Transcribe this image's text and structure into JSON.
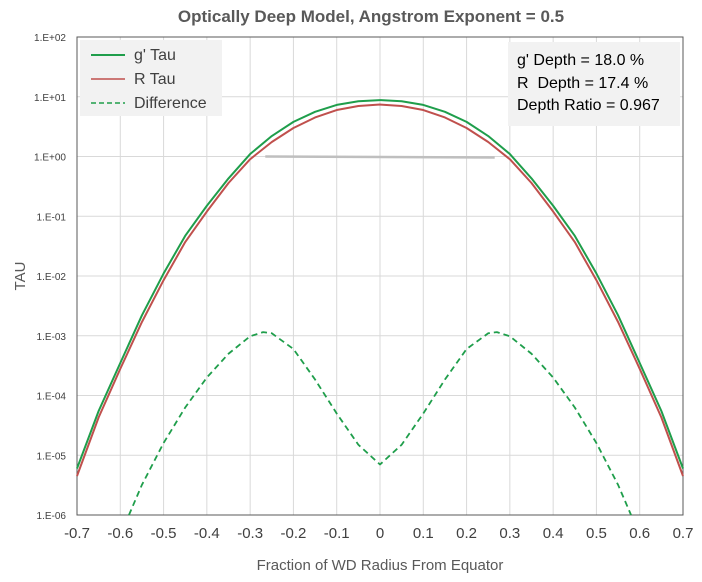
{
  "chart_data": {
    "type": "line",
    "title": "Optically Deep Model, Angstrom Exponent = 0.5",
    "xlabel": "Fraction of WD Radius From Equator",
    "ylabel": "TAU",
    "xlim": [
      -0.7,
      0.7
    ],
    "ylim": [
      1e-06,
      100
    ],
    "y_scale": "log",
    "grid": true,
    "legend_position": "top-left",
    "x_ticks": [
      "-0.7",
      "-0.6",
      "-0.5",
      "-0.4",
      "-0.3",
      "-0.2",
      "-0.1",
      "0",
      "0.1",
      "0.2",
      "0.3",
      "0.4",
      "0.5",
      "0.6",
      "0.7"
    ],
    "y_ticks": [
      "1.E-06",
      "1.E-05",
      "1.E-04",
      "1.E-03",
      "1.E-02",
      "1.E-01",
      "1.E+00",
      "1.E+01",
      "1.E+02"
    ],
    "series": [
      {
        "name": "g' Tau",
        "color": "#1f9e4b",
        "style": "solid",
        "x": [
          -0.7,
          -0.65,
          -0.6,
          -0.55,
          -0.5,
          -0.45,
          -0.4,
          -0.35,
          -0.3,
          -0.25,
          -0.2,
          -0.15,
          -0.1,
          -0.05,
          0,
          0.05,
          0.1,
          0.15,
          0.2,
          0.25,
          0.3,
          0.35,
          0.4,
          0.45,
          0.5,
          0.55,
          0.6,
          0.65,
          0.7
        ],
        "y": [
          6e-06,
          5.5e-05,
          0.00035,
          0.0022,
          0.011,
          0.047,
          0.15,
          0.43,
          1.1,
          2.2,
          3.8,
          5.6,
          7.3,
          8.4,
          8.8,
          8.4,
          7.3,
          5.6,
          3.8,
          2.2,
          1.1,
          0.43,
          0.15,
          0.047,
          0.011,
          0.0022,
          0.00035,
          5.5e-05,
          6e-06
        ]
      },
      {
        "name": "R Tau",
        "color": "#c0504d",
        "style": "solid",
        "x": [
          -0.7,
          -0.65,
          -0.6,
          -0.55,
          -0.5,
          -0.45,
          -0.4,
          -0.35,
          -0.3,
          -0.25,
          -0.2,
          -0.15,
          -0.1,
          -0.05,
          0,
          0.05,
          0.1,
          0.15,
          0.2,
          0.25,
          0.3,
          0.35,
          0.4,
          0.45,
          0.5,
          0.55,
          0.6,
          0.65,
          0.7
        ],
        "y": [
          4.5e-06,
          4.3e-05,
          0.00028,
          0.0017,
          0.0085,
          0.037,
          0.12,
          0.36,
          0.9,
          1.75,
          3.0,
          4.5,
          6.0,
          7.0,
          7.4,
          7.0,
          6.0,
          4.5,
          3.0,
          1.75,
          0.9,
          0.36,
          0.12,
          0.037,
          0.0085,
          0.0017,
          0.00028,
          4.3e-05,
          4.5e-06
        ]
      },
      {
        "name": "Difference",
        "color": "#1f9e4b",
        "style": "dashed",
        "x": [
          -0.58,
          -0.55,
          -0.5,
          -0.45,
          -0.4,
          -0.35,
          -0.3,
          -0.27,
          -0.25,
          -0.2,
          -0.15,
          -0.1,
          -0.05,
          0,
          0.05,
          0.1,
          0.15,
          0.2,
          0.25,
          0.27,
          0.3,
          0.35,
          0.4,
          0.45,
          0.5,
          0.55,
          0.58
        ],
        "y": [
          1e-06,
          3.2e-06,
          1.6e-05,
          6.3e-05,
          0.0002,
          0.0005,
          0.00098,
          0.00115,
          0.0011,
          0.0006,
          0.000185,
          5e-05,
          1.5e-05,
          7e-06,
          1.5e-05,
          5e-05,
          0.000185,
          0.0006,
          0.0011,
          0.00115,
          0.00098,
          0.0005,
          0.0002,
          6.3e-05,
          1.6e-05,
          3.2e-06,
          1e-06
        ]
      }
    ],
    "reference_line": {
      "color": "#bfbfbf",
      "x": [
        -0.265,
        0.265
      ],
      "y": [
        1.0,
        0.96
      ]
    },
    "annotations": [
      "g' Depth = 18.0 %",
      "R  Depth = 17.4 %",
      "Depth Ratio = 0.967"
    ]
  }
}
